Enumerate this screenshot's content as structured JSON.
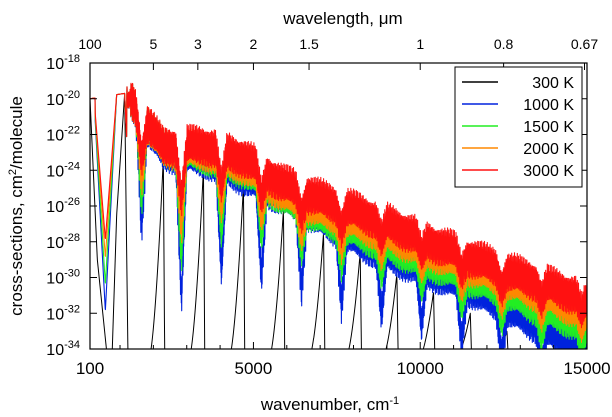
{
  "chart_data": {
    "type": "line",
    "xlabel": "wavenumber, cm",
    "xlabel_sup": "-1",
    "x2label_pre": "wavelength, ",
    "x2label_unit": "μm",
    "ylabel_pre": "cross-sections, cm",
    "ylabel_sup": "2",
    "ylabel_post": "/molecule",
    "xlim": [
      100,
      15000
    ],
    "ylim_log10": [
      -34,
      -18
    ],
    "yscale": "log",
    "x_ticks": [
      {
        "value": 100,
        "label": "100"
      },
      {
        "value": 5000,
        "label": "5000"
      },
      {
        "value": 10000,
        "label": "10000"
      },
      {
        "value": 15000,
        "label": "15000"
      }
    ],
    "x2_ticks": [
      {
        "wavenumber": 100,
        "label": "100"
      },
      {
        "wavenumber": 2000,
        "label": "5"
      },
      {
        "wavenumber": 3333,
        "label": "3"
      },
      {
        "wavenumber": 5000,
        "label": "2"
      },
      {
        "wavenumber": 6667,
        "label": "1.5"
      },
      {
        "wavenumber": 10000,
        "label": "1"
      },
      {
        "wavenumber": 12500,
        "label": "0.8"
      },
      {
        "wavenumber": 14925,
        "label": "0.67"
      }
    ],
    "y_ticks": [
      {
        "exp": -18,
        "base": "10",
        "sup": "-18"
      },
      {
        "exp": -20,
        "base": "10",
        "sup": "-20"
      },
      {
        "exp": -22,
        "base": "10",
        "sup": "-22"
      },
      {
        "exp": -24,
        "base": "10",
        "sup": "-24"
      },
      {
        "exp": -26,
        "base": "10",
        "sup": "-26"
      },
      {
        "exp": -28,
        "base": "10",
        "sup": "-28"
      },
      {
        "exp": -30,
        "base": "10",
        "sup": "-30"
      },
      {
        "exp": -32,
        "base": "10",
        "sup": "-32"
      },
      {
        "exp": -34,
        "base": "10",
        "sup": "-34"
      }
    ],
    "legend_position": "top-right",
    "series": [
      {
        "name": "300 K",
        "color": "#000000",
        "band_peaks_log10": [
          [
            100,
            -20
          ],
          [
            1140,
            -19.7
          ],
          [
            2300,
            -23.3
          ],
          [
            3500,
            -23.9
          ],
          [
            4700,
            -24.9
          ],
          [
            5900,
            -26.2
          ],
          [
            7100,
            -27.5
          ],
          [
            8200,
            -28.6
          ],
          [
            9300,
            -29.8
          ],
          [
            10400,
            -30.8
          ],
          [
            11500,
            -32
          ],
          [
            12600,
            -33
          ],
          [
            13700,
            -34.3
          ]
        ],
        "gap_floor_log10": -34.5
      },
      {
        "name": "1000 K",
        "color": "#0022dd",
        "band_peaks_log10": [
          [
            100,
            -20
          ],
          [
            1140,
            -19.7
          ],
          [
            2300,
            -23.1
          ],
          [
            3500,
            -23.4
          ],
          [
            4700,
            -24.4
          ],
          [
            5900,
            -25.6
          ],
          [
            7100,
            -26.9
          ],
          [
            8200,
            -28.1
          ],
          [
            9300,
            -29
          ],
          [
            10400,
            -29.8
          ],
          [
            11500,
            -30.7
          ],
          [
            12600,
            -31.8
          ],
          [
            13600,
            -32.8
          ],
          [
            14500,
            -33.8
          ]
        ],
        "valley_depth": [
          [
            100,
            0
          ],
          [
            1000,
            0
          ],
          [
            2000,
            8
          ],
          [
            4000,
            5
          ],
          [
            6000,
            4
          ],
          [
            9000,
            3
          ],
          [
            12000,
            2.5
          ],
          [
            15000,
            2
          ]
        ]
      },
      {
        "name": "1500 K",
        "color": "#22ee22",
        "envelope_log10": [
          [
            100,
            -20
          ],
          [
            1140,
            -19.7
          ],
          [
            2300,
            -22.9
          ],
          [
            3500,
            -23.2
          ],
          [
            4700,
            -24
          ],
          [
            5900,
            -25.6
          ],
          [
            7100,
            -26.8
          ],
          [
            8200,
            -27.6
          ],
          [
            9300,
            -28.5
          ],
          [
            10400,
            -29.3
          ],
          [
            11500,
            -30.1
          ],
          [
            12600,
            -30.9
          ],
          [
            13600,
            -31.8
          ],
          [
            14500,
            -32.4
          ],
          [
            15000,
            -32.8
          ]
        ],
        "valley_depth": [
          [
            100,
            0
          ],
          [
            1000,
            0
          ],
          [
            2000,
            6
          ],
          [
            4000,
            3.5
          ],
          [
            6000,
            2
          ],
          [
            9000,
            1.5
          ],
          [
            12000,
            1.3
          ],
          [
            15000,
            1.2
          ]
        ]
      },
      {
        "name": "2000 K",
        "color": "#ff8800",
        "envelope_log10": [
          [
            100,
            -20
          ],
          [
            1140,
            -19.7
          ],
          [
            2300,
            -22.9
          ],
          [
            3500,
            -23
          ],
          [
            4700,
            -23.8
          ],
          [
            5900,
            -25.4
          ],
          [
            7100,
            -26.4
          ],
          [
            8200,
            -27.1
          ],
          [
            9300,
            -27.9
          ],
          [
            10400,
            -28.7
          ],
          [
            11500,
            -29.5
          ],
          [
            12600,
            -30.3
          ],
          [
            13600,
            -31
          ],
          [
            14500,
            -31.7
          ],
          [
            15000,
            -32
          ]
        ],
        "valley_depth": [
          [
            100,
            0
          ],
          [
            1000,
            0
          ],
          [
            2000,
            4.5
          ],
          [
            4000,
            2.5
          ],
          [
            6000,
            1.5
          ],
          [
            9000,
            1.1
          ],
          [
            12000,
            1
          ],
          [
            15000,
            0.9
          ]
        ]
      },
      {
        "name": "3000 K",
        "color": "#ff1111",
        "envelope_log10": [
          [
            100,
            -20
          ],
          [
            1140,
            -19.7
          ],
          [
            2300,
            -22.8
          ],
          [
            3500,
            -22.7
          ],
          [
            4700,
            -23.4
          ],
          [
            5900,
            -24.9
          ],
          [
            7100,
            -25.8
          ],
          [
            8200,
            -26.5
          ],
          [
            9300,
            -27.3
          ],
          [
            10400,
            -28.2
          ],
          [
            11500,
            -29
          ],
          [
            12600,
            -29.8
          ],
          [
            13600,
            -30.4
          ],
          [
            14500,
            -31
          ],
          [
            15000,
            -31.3
          ]
        ],
        "valley_depth": [
          [
            100,
            0
          ],
          [
            1000,
            0
          ],
          [
            2000,
            3
          ],
          [
            4000,
            1.8
          ],
          [
            6000,
            1.1
          ],
          [
            9000,
            0.9
          ],
          [
            12000,
            0.8
          ],
          [
            15000,
            0.8
          ]
        ]
      }
    ]
  }
}
